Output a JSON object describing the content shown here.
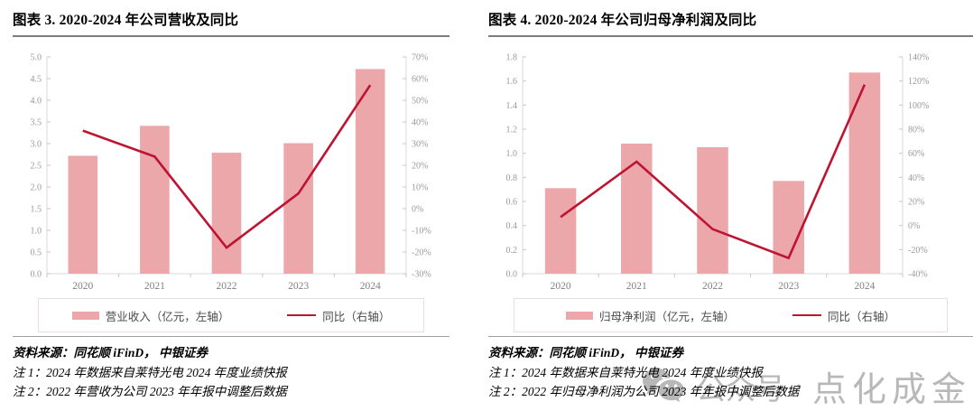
{
  "watermark": {
    "icon": "wechat-icon",
    "prefix": "公众号",
    "separator": "·",
    "suffix": "点化成金",
    "color": "#b8b8b8"
  },
  "charts": [
    {
      "title": "图表 3. 2020-2024 年公司营收及同比",
      "source": "资料来源：同花顺 iFinD， 中银证券",
      "notes": [
        "注 1：2024 年数据来自莱特光电 2024 年度业绩快报",
        "注 2：2022 年营收为公司 2023 年年报中调整后数据"
      ],
      "chart_data": {
        "type": "bar",
        "categories": [
          "2020",
          "2021",
          "2022",
          "2023",
          "2024"
        ],
        "series": [
          {
            "name": "营业收入（亿元，左轴）",
            "type": "bar",
            "axis": "left",
            "color": "#ECA7AA",
            "values": [
              2.72,
              3.41,
              2.79,
              3.01,
              4.72
            ]
          },
          {
            "name": "同比（右轴）",
            "type": "line",
            "axis": "right",
            "color": "#BE1432",
            "values": [
              36,
              24,
              -18,
              7,
              57
            ]
          }
        ],
        "left_axis": {
          "min": 0,
          "max": 5.0,
          "step": 0.5,
          "format": "number"
        },
        "right_axis": {
          "min": -30,
          "max": 70,
          "step": 10,
          "format": "percent"
        },
        "grid": false,
        "legend_position": "bottom"
      }
    },
    {
      "title": "图表 4. 2020-2024 年公司归母净利润及同比",
      "source": "资料来源：同花顺 iFinD， 中银证券",
      "notes": [
        "注 1：2024 年数据来自莱特光电 2024 年度业绩快报",
        "注 2：2022 年归母净利润为公司 2023 年年报中调整后数据"
      ],
      "chart_data": {
        "type": "bar",
        "categories": [
          "2020",
          "2021",
          "2022",
          "2023",
          "2024"
        ],
        "series": [
          {
            "name": "归母净利润（亿元，左轴）",
            "type": "bar",
            "axis": "left",
            "color": "#ECA7AA",
            "values": [
              0.71,
              1.08,
              1.05,
              0.77,
              1.67
            ]
          },
          {
            "name": "同比（右轴）",
            "type": "line",
            "axis": "right",
            "color": "#BE1432",
            "values": [
              7,
              53,
              -3,
              -27,
              117
            ]
          }
        ],
        "left_axis": {
          "min": 0,
          "max": 1.8,
          "step": 0.2,
          "format": "number"
        },
        "right_axis": {
          "min": -40,
          "max": 140,
          "step": 20,
          "format": "percent"
        },
        "grid": false,
        "legend_position": "bottom"
      }
    }
  ]
}
